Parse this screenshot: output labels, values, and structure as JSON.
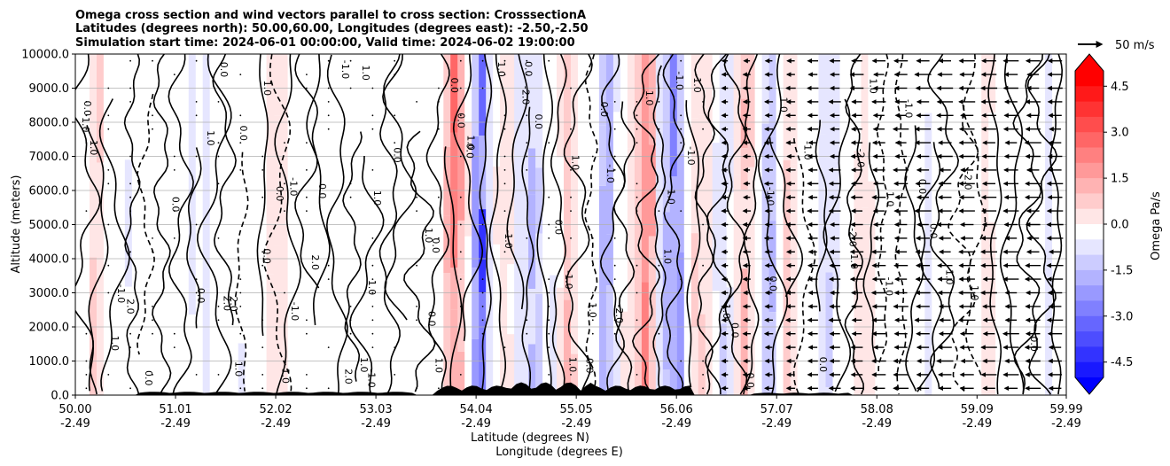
{
  "chart_data": {
    "type": "heatmap",
    "title_lines": [
      "Omega cross section and wind vectors parallel to cross section: CrosssectionA",
      "Latitudes (degrees north): 50.00,60.00, Longitudes (degrees east): -2.50,-2.50",
      "Simulation start time: 2024-06-01 00:00:00, Valid time: 2024-06-02 19:00:00"
    ],
    "ylabel": "Altitude (meters)",
    "xlabel_lat": "Latitude (degrees N)",
    "xlabel_lon": "Longitude (degrees E)",
    "ylim": [
      0,
      10000
    ],
    "xlim": [
      50.0,
      59.99
    ],
    "y_ticks": [
      "0.0",
      "1000.0",
      "2000.0",
      "3000.0",
      "4000.0",
      "5000.0",
      "6000.0",
      "7000.0",
      "8000.0",
      "9000.0",
      "10000.0"
    ],
    "x_ticks_lat": [
      "50.00",
      "51.01",
      "52.02",
      "53.03",
      "54.04",
      "55.05",
      "56.06",
      "57.07",
      "58.08",
      "59.09",
      "59.99"
    ],
    "x_ticks_lon": [
      "-2.49",
      "-2.49",
      "-2.49",
      "-2.49",
      "-2.49",
      "-2.49",
      "-2.49",
      "-2.49",
      "-2.49",
      "-2.49",
      "-2.49"
    ],
    "contour_levels": [
      -2.0,
      -1.0,
      0.0,
      1.0,
      2.0
    ],
    "contour_labels": [
      "0.0",
      "1.0",
      "-1.0",
      "0.0",
      "1.0",
      "-2.0",
      "0.0",
      "1.0",
      "-1.0",
      "0.0",
      "2.0",
      "1.0",
      "-1.0",
      "0.0",
      "1.0"
    ],
    "colorbar": {
      "label": "Omega Pa/s",
      "ticks": [
        "4.5",
        "3.0",
        "1.5",
        "0.0",
        "-1.5",
        "-3.0",
        "-4.5"
      ],
      "range": [
        -5.0,
        5.0
      ],
      "colormap": "bwr",
      "extend": "both"
    },
    "vector_key": {
      "label": "50 m/s",
      "speed": 50
    },
    "omega_columns": [
      {
        "lat": 50.2,
        "val": 0.6
      },
      {
        "lat": 51.3,
        "val": -0.5
      },
      {
        "lat": 52.0,
        "val": 0.4
      },
      {
        "lat": 53.0,
        "val": 0.3
      },
      {
        "lat": 53.8,
        "val": 2.3
      },
      {
        "lat": 53.95,
        "val": 1.2
      },
      {
        "lat": 54.07,
        "val": -3.6
      },
      {
        "lat": 54.3,
        "val": 0.8
      },
      {
        "lat": 54.6,
        "val": -1.4
      },
      {
        "lat": 55.0,
        "val": 1.5
      },
      {
        "lat": 55.35,
        "val": -1.8
      },
      {
        "lat": 55.6,
        "val": 0.7
      },
      {
        "lat": 55.78,
        "val": 2.7
      },
      {
        "lat": 55.92,
        "val": -1.0
      },
      {
        "lat": 56.05,
        "val": -2.6
      },
      {
        "lat": 56.3,
        "val": 0.9
      },
      {
        "lat": 56.55,
        "val": -0.8
      },
      {
        "lat": 56.75,
        "val": 1.6
      },
      {
        "lat": 57.0,
        "val": -1.2
      },
      {
        "lat": 57.2,
        "val": 1.0
      },
      {
        "lat": 57.6,
        "val": -0.6
      },
      {
        "lat": 57.9,
        "val": 0.5
      },
      {
        "lat": 58.5,
        "val": -0.4
      },
      {
        "lat": 59.2,
        "val": 0.4
      },
      {
        "lat": 59.8,
        "val": -0.3
      }
    ]
  },
  "colors": {
    "negative": "#0000ff",
    "positive": "#ff0000",
    "neutral": "#ffffff",
    "terrain": "#000000",
    "contour": "#000000",
    "grid": "#b0b0b0"
  }
}
